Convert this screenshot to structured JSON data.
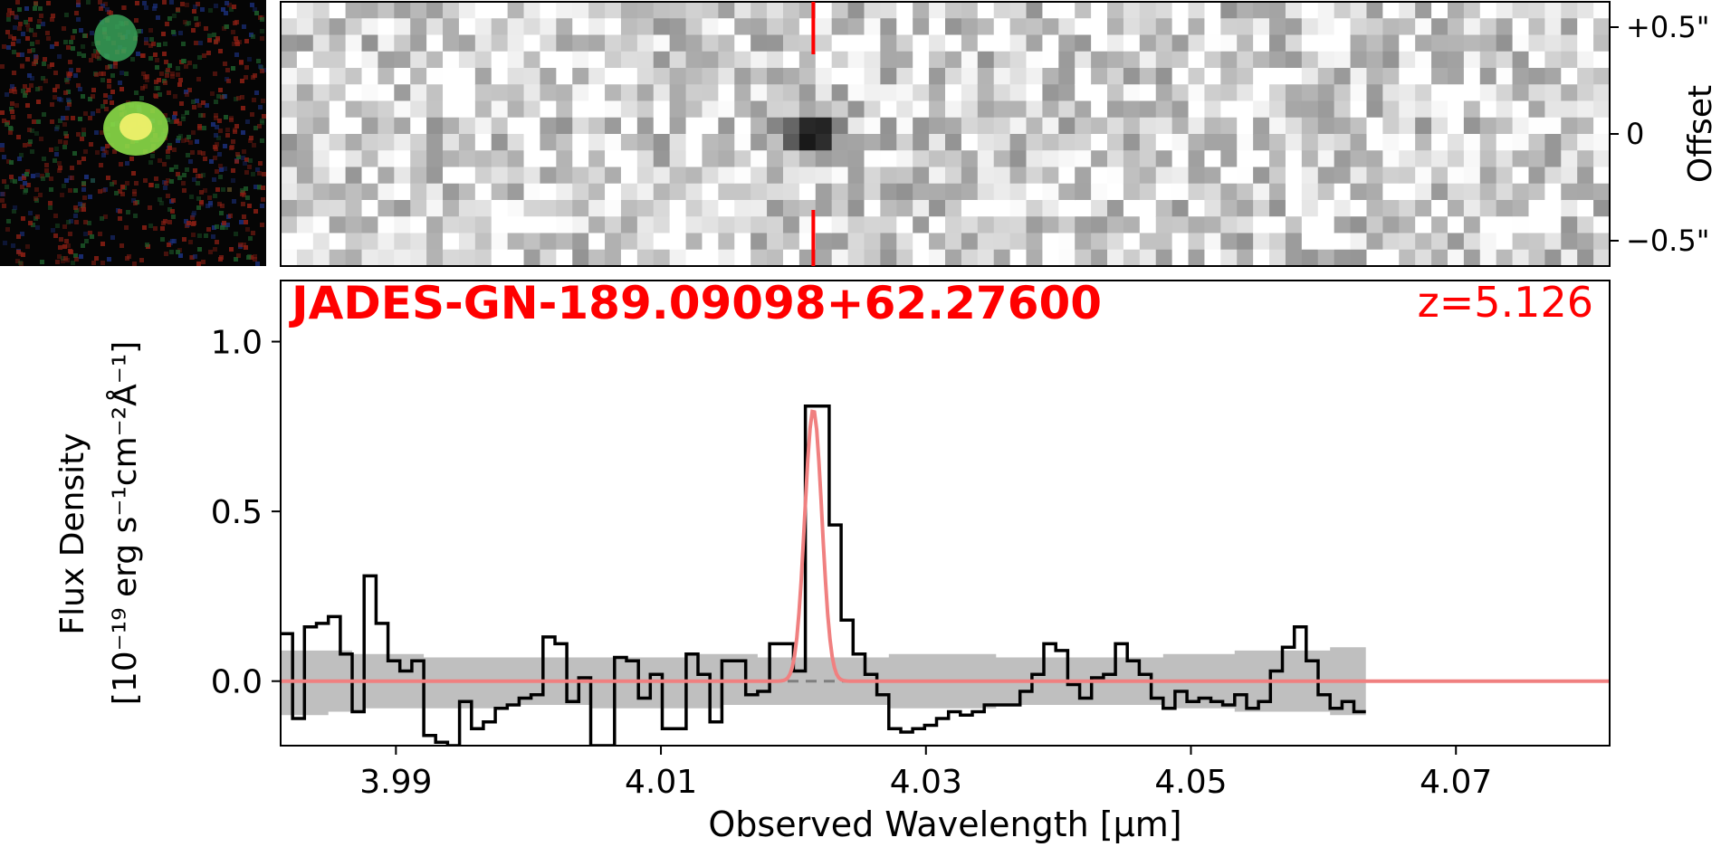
{
  "title": "JADES-GN-189.09098+62.27600",
  "redshift_label": "z=5.126",
  "colors": {
    "accent": "#ff0000",
    "data_line": "#000000",
    "model_line": "#f08080",
    "error_band": "#bfbfbf",
    "zero_line": "#7f7f7f"
  },
  "thumbnail": {
    "description_icon": "rgb-galaxy-cutout"
  },
  "spectrum_2d": {
    "y_axis_label": "Offset",
    "y_ticks": [
      "+0.5\"",
      "0",
      "−0.5\""
    ],
    "marker_wavelength": 4.0215
  },
  "chart_data": {
    "type": "line",
    "xlabel": "Observed Wavelength [µm]",
    "ylabel_line1": "Flux Density",
    "ylabel_line2": "[10⁻¹⁹ erg s⁻¹cm⁻²Å⁻¹]",
    "xlim": [
      3.9813,
      4.0816
    ],
    "ylim": [
      -0.19,
      1.18
    ],
    "x_ticks": [
      3.99,
      4.01,
      4.03,
      4.05,
      4.07
    ],
    "x_tick_labels": [
      "3.99",
      "4.01",
      "4.03",
      "4.05",
      "4.07"
    ],
    "y_ticks": [
      0.0,
      0.5,
      1.0
    ],
    "y_tick_labels": [
      "0.0",
      "0.5",
      "1.0"
    ],
    "grid": false,
    "step_start": 3.9813,
    "step_width": 0.0009,
    "series": [
      {
        "style": "step",
        "values": [
          0.14,
          -0.11,
          0.16,
          0.17,
          0.19,
          0.08,
          -0.09,
          0.31,
          0.17,
          0.06,
          0.03,
          0.06,
          -0.16,
          -0.18,
          -0.19,
          -0.06,
          -0.14,
          -0.12,
          -0.08,
          -0.07,
          -0.05,
          -0.04,
          0.13,
          0.11,
          -0.06,
          0.01,
          -0.19,
          -0.19,
          0.07,
          0.06,
          -0.05,
          0.02,
          -0.14,
          -0.14,
          0.08,
          0.02,
          -0.12,
          0.06,
          0.06,
          -0.04,
          -0.03,
          0.11,
          0.11,
          0.03,
          0.81,
          0.81,
          0.46,
          0.18,
          0.08,
          0.02,
          -0.04,
          -0.14,
          -0.15,
          -0.14,
          -0.13,
          -0.11,
          -0.09,
          -0.1,
          -0.09,
          -0.07,
          -0.07,
          -0.07,
          -0.03,
          0.02,
          0.11,
          0.09,
          -0.01,
          -0.05,
          0.01,
          0.02,
          0.11,
          0.06,
          0.02,
          -0.05,
          -0.08,
          -0.03,
          -0.06,
          -0.05,
          -0.06,
          -0.07,
          -0.04,
          -0.08,
          -0.06,
          0.03,
          0.1,
          0.16,
          0.06,
          -0.04,
          -0.08,
          -0.06,
          -0.09
        ]
      },
      {
        "style": "gaussian-model",
        "amplitude": 0.8,
        "center": 4.0215,
        "sigma": 0.00065,
        "baseline": 0.0
      }
    ],
    "error_band": {
      "lower": [
        -0.1,
        -0.1,
        -0.1,
        -0.1,
        -0.09,
        -0.09,
        -0.09,
        -0.08,
        -0.08,
        -0.08,
        -0.08,
        -0.08,
        -0.08,
        -0.08,
        -0.08,
        -0.08,
        -0.08,
        -0.08,
        -0.08,
        -0.07,
        -0.07,
        -0.07,
        -0.07,
        -0.07,
        -0.07,
        -0.07,
        -0.08,
        -0.08,
        -0.08,
        -0.08,
        -0.08,
        -0.08,
        -0.08,
        -0.08,
        -0.08,
        -0.08,
        -0.08,
        -0.07,
        -0.07,
        -0.07,
        -0.07,
        -0.07,
        -0.07,
        -0.07,
        -0.07,
        -0.07,
        -0.07,
        -0.07,
        -0.07,
        -0.07,
        -0.07,
        -0.08,
        -0.08,
        -0.08,
        -0.08,
        -0.08,
        -0.08,
        -0.08,
        -0.08,
        -0.08,
        -0.07,
        -0.07,
        -0.07,
        -0.07,
        -0.07,
        -0.07,
        -0.07,
        -0.07,
        -0.07,
        -0.07,
        -0.07,
        -0.07,
        -0.07,
        -0.07,
        -0.08,
        -0.08,
        -0.08,
        -0.08,
        -0.08,
        -0.08,
        -0.09,
        -0.09,
        -0.09,
        -0.09,
        -0.09,
        -0.09,
        -0.09,
        -0.09,
        -0.1,
        -0.1,
        -0.1
      ],
      "upper": [
        0.09,
        0.09,
        0.09,
        0.09,
        0.09,
        0.09,
        0.08,
        0.08,
        0.08,
        0.08,
        0.08,
        0.08,
        0.07,
        0.07,
        0.07,
        0.07,
        0.07,
        0.07,
        0.07,
        0.07,
        0.07,
        0.07,
        0.07,
        0.07,
        0.07,
        0.07,
        0.07,
        0.07,
        0.07,
        0.07,
        0.07,
        0.07,
        0.07,
        0.07,
        0.08,
        0.08,
        0.08,
        0.08,
        0.08,
        0.08,
        0.07,
        0.07,
        0.07,
        0.07,
        0.07,
        0.07,
        0.07,
        0.07,
        0.07,
        0.07,
        0.07,
        0.08,
        0.08,
        0.08,
        0.08,
        0.08,
        0.08,
        0.08,
        0.08,
        0.08,
        0.07,
        0.07,
        0.07,
        0.07,
        0.07,
        0.07,
        0.07,
        0.07,
        0.07,
        0.07,
        0.07,
        0.07,
        0.07,
        0.07,
        0.08,
        0.08,
        0.08,
        0.08,
        0.08,
        0.08,
        0.09,
        0.09,
        0.09,
        0.09,
        0.09,
        0.09,
        0.09,
        0.09,
        0.1,
        0.1,
        0.1
      ]
    }
  }
}
